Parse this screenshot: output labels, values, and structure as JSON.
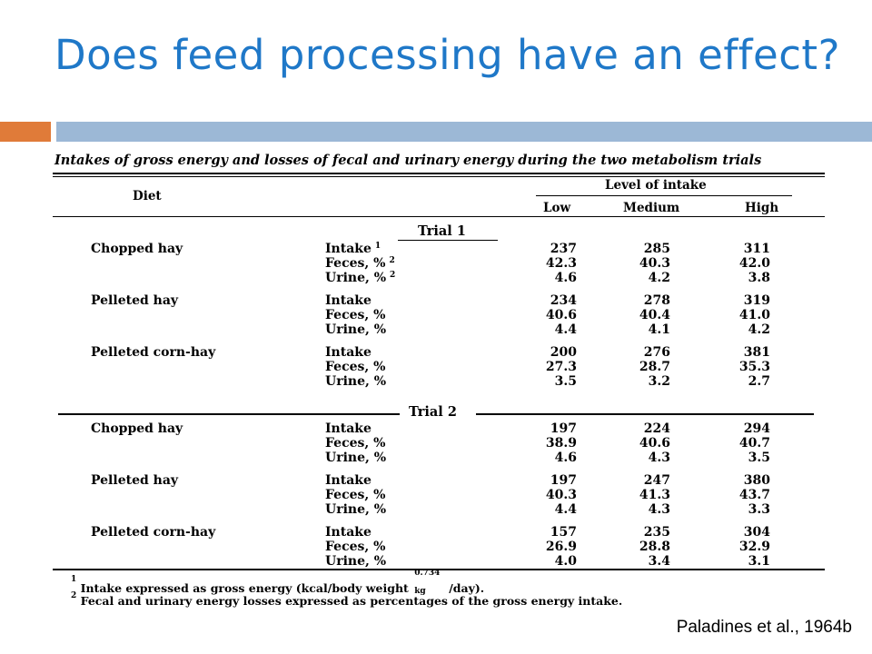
{
  "slide": {
    "title": "Does feed processing have an effect?",
    "citation": "Paladines et al., 1964b",
    "accent_colors": {
      "orange": "#e07b39",
      "blue": "#9cb8d6",
      "title": "#1f78c8"
    }
  },
  "table": {
    "caption": "Intakes of gross energy and losses of fecal and urinary energy during the two metabolism trials",
    "diet_header": "Diet",
    "level_header": "Level of intake",
    "columns": [
      "Low",
      "Medium",
      "High"
    ],
    "trials": [
      {
        "label": "Trial 1",
        "diets": [
          {
            "name": "Chopped hay",
            "rows": [
              {
                "measure": "Intake",
                "sup": "1",
                "values": [
                  "237",
                  "285",
                  "311"
                ]
              },
              {
                "measure": "Feces, %",
                "sup": "2",
                "values": [
                  "42.3",
                  "40.3",
                  "42.0"
                ]
              },
              {
                "measure": "Urine, %",
                "sup": "2",
                "values": [
                  "4.6",
                  "4.2",
                  "3.8"
                ]
              }
            ]
          },
          {
            "name": "Pelleted hay",
            "rows": [
              {
                "measure": "Intake",
                "values": [
                  "234",
                  "278",
                  "319"
                ]
              },
              {
                "measure": "Feces, %",
                "values": [
                  "40.6",
                  "40.4",
                  "41.0"
                ]
              },
              {
                "measure": "Urine, %",
                "values": [
                  "4.4",
                  "4.1",
                  "4.2"
                ]
              }
            ]
          },
          {
            "name": "Pelleted corn-hay",
            "rows": [
              {
                "measure": "Intake",
                "values": [
                  "200",
                  "276",
                  "381"
                ]
              },
              {
                "measure": "Feces, %",
                "values": [
                  "27.3",
                  "28.7",
                  "35.3"
                ]
              },
              {
                "measure": "Urine, %",
                "values": [
                  "3.5",
                  "3.2",
                  "2.7"
                ]
              }
            ]
          }
        ]
      },
      {
        "label": "Trial 2",
        "diets": [
          {
            "name": "Chopped hay",
            "rows": [
              {
                "measure": "Intake",
                "values": [
                  "197",
                  "224",
                  "294"
                ]
              },
              {
                "measure": "Feces, %",
                "values": [
                  "38.9",
                  "40.6",
                  "40.7"
                ]
              },
              {
                "measure": "Urine, %",
                "values": [
                  "4.6",
                  "4.3",
                  "3.5"
                ]
              }
            ]
          },
          {
            "name": "Pelleted hay",
            "rows": [
              {
                "measure": "Intake",
                "values": [
                  "197",
                  "247",
                  "380"
                ]
              },
              {
                "measure": "Feces, %",
                "values": [
                  "40.3",
                  "41.3",
                  "43.7"
                ]
              },
              {
                "measure": "Urine, %",
                "values": [
                  "4.4",
                  "4.3",
                  "3.3"
                ]
              }
            ]
          },
          {
            "name": "Pelleted corn-hay",
            "rows": [
              {
                "measure": "Intake",
                "values": [
                  "157",
                  "235",
                  "304"
                ]
              },
              {
                "measure": "Feces, %",
                "values": [
                  "26.9",
                  "28.8",
                  "32.9"
                ]
              },
              {
                "measure": "Urine, %",
                "values": [
                  "4.0",
                  "3.4",
                  "3.1"
                ]
              }
            ]
          }
        ]
      }
    ],
    "footnotes": {
      "fn1_mark": "1",
      "fn1_pre": "Intake expressed as gross energy (kcal/body weight",
      "fn1_exp": "0.734",
      "fn1_sub": "kg",
      "fn1_post": "/day).",
      "fn2_mark": "2",
      "fn2_text": "Fecal and urinary energy losses expressed as percentages of the gross energy intake."
    }
  }
}
